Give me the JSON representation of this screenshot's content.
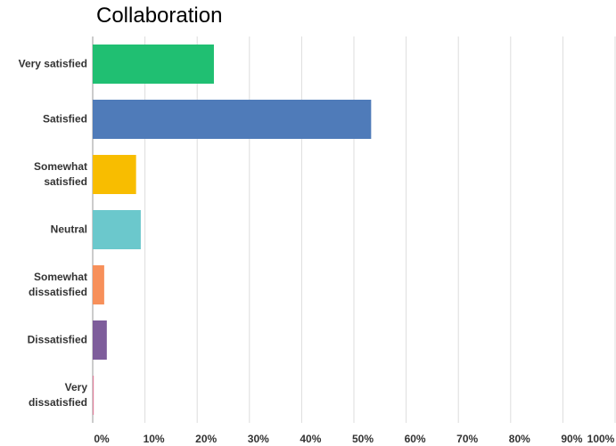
{
  "chart_data": {
    "type": "bar",
    "orientation": "horizontal",
    "title": "Collaboration",
    "categories": [
      "Very satisfied",
      "Satisfied",
      "Somewhat\nsatisfied",
      "Neutral",
      "Somewhat\ndissatisfied",
      "Dissatisfied",
      "Very\ndissatisfied"
    ],
    "values": [
      23.2,
      53.3,
      8.3,
      9.2,
      2.2,
      2.7,
      0.2
    ],
    "colors": [
      "#20bf72",
      "#4f7bb9",
      "#f8bd00",
      "#6bc8cc",
      "#f7905a",
      "#7e5d9b",
      "#e2839f"
    ],
    "xlim": [
      0,
      100
    ],
    "xticks": [
      {
        "value": 0,
        "label": "0%"
      },
      {
        "value": 10,
        "label": "10%"
      },
      {
        "value": 20,
        "label": "20%"
      },
      {
        "value": 30,
        "label": "30%"
      },
      {
        "value": 40,
        "label": "40%"
      },
      {
        "value": 50,
        "label": "50%"
      },
      {
        "value": 60,
        "label": "60%"
      },
      {
        "value": 70,
        "label": "70%"
      },
      {
        "value": 80,
        "label": "80%"
      },
      {
        "value": 90,
        "label": "90%"
      },
      {
        "value": 100,
        "label": "100%"
      }
    ],
    "grid": true
  }
}
